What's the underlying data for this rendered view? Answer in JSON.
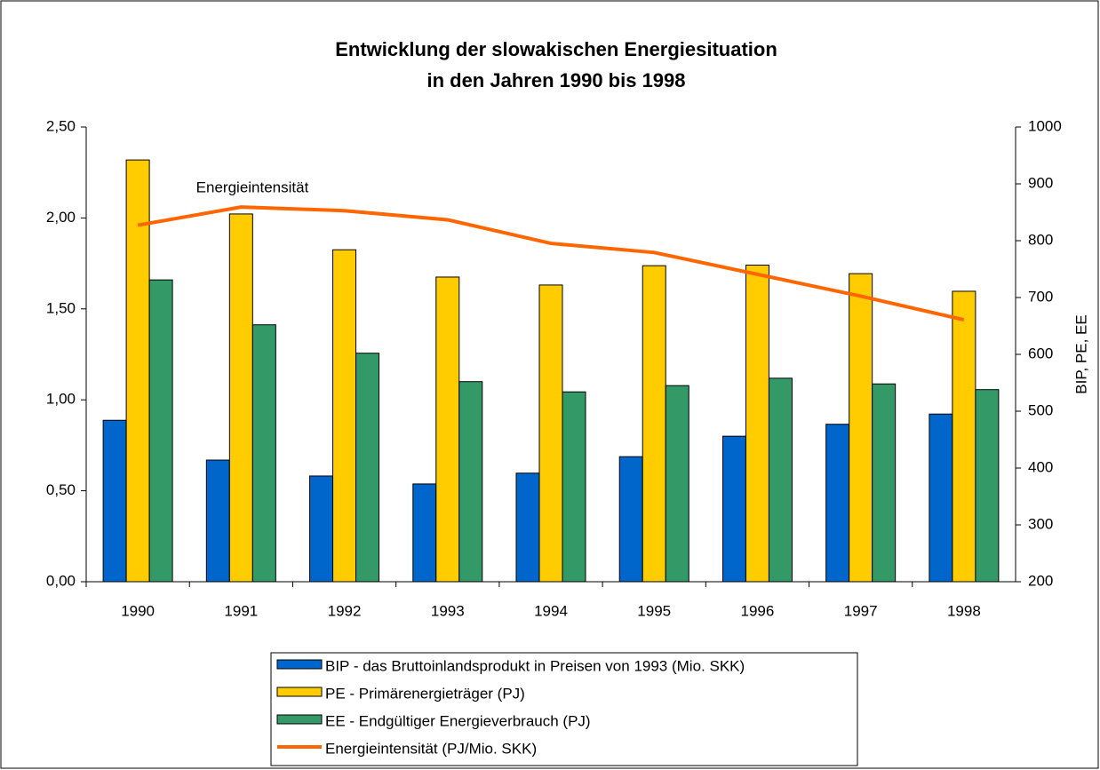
{
  "chart_data": {
    "type": "bar",
    "title": "Entwicklung der slowakischen Energiesituation",
    "subtitle": "in den Jahren 1990 bis 1998",
    "y2_label": "BIP, PE, EE",
    "annotation": "Energieintensität",
    "categories": [
      "1990",
      "1991",
      "1992",
      "1993",
      "1994",
      "1995",
      "1996",
      "1997",
      "1998"
    ],
    "ylim": [
      0,
      2.5
    ],
    "yticks": [
      {
        "value": 0,
        "label": "0,00"
      },
      {
        "value": 0.5,
        "label": "0,50"
      },
      {
        "value": 1,
        "label": "1,00"
      },
      {
        "value": 1.5,
        "label": "1,50"
      },
      {
        "value": 2,
        "label": "2,00"
      },
      {
        "value": 2.5,
        "label": "2,50"
      }
    ],
    "y2lim": [
      200,
      1000
    ],
    "y2ticks": [
      200,
      300,
      400,
      500,
      600,
      700,
      800,
      900,
      1000
    ],
    "series": [
      {
        "name": "BIP - das Bruttoinlandsprodukt in Preisen von 1993 (Mio. SKK)",
        "color": "#0066cc",
        "axis": "y2",
        "type": "bar",
        "values": [
          484,
          414,
          386,
          372,
          391,
          420,
          456,
          477,
          495
        ]
      },
      {
        "name": "PE - Primärenergieträger (PJ)",
        "color": "#ffcc00",
        "axis": "y2",
        "type": "bar",
        "values": [
          942,
          847,
          784,
          736,
          722,
          756,
          757,
          742,
          711
        ]
      },
      {
        "name": "EE - Endgültiger Energieverbrauch  (PJ)",
        "color": "#339966",
        "axis": "y2",
        "type": "bar",
        "values": [
          731,
          652,
          602,
          552,
          534,
          545,
          558,
          548,
          538
        ]
      },
      {
        "name": "Energieintensität (PJ/Mio. SKK)",
        "color": "#ff6600",
        "type": "line",
        "values": [
          1.96,
          2.06,
          2.04,
          1.99,
          1.86,
          1.81,
          1.69,
          1.57,
          1.44
        ]
      }
    ]
  }
}
